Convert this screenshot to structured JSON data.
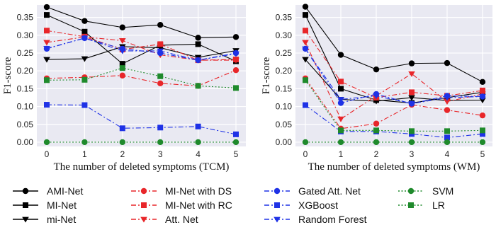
{
  "chart_data": [
    {
      "type": "line",
      "ylabel": "F1-score",
      "xlabel": "The number of deleted symptoms (TCM)",
      "x": [
        0,
        1,
        2,
        3,
        4,
        5
      ],
      "xticks": [
        "0",
        "1",
        "2",
        "3",
        "4",
        "5"
      ],
      "yticks": [
        "0.00",
        "0.05",
        "0.10",
        "0.15",
        "0.20",
        "0.25",
        "0.30",
        "0.35"
      ],
      "ylim": [
        -0.012,
        0.385
      ],
      "grid": true,
      "series": [
        {
          "name": "AMI-Net",
          "values": [
            0.379,
            0.34,
            0.322,
            0.329,
            0.293,
            0.295
          ]
        },
        {
          "name": "MI-Net",
          "values": [
            0.357,
            0.31,
            0.22,
            0.272,
            0.275,
            0.227
          ]
        },
        {
          "name": "mi-Net",
          "values": [
            0.232,
            0.234,
            0.268,
            0.265,
            0.238,
            0.257
          ]
        },
        {
          "name": "MI-Net with DS",
          "values": [
            0.179,
            0.182,
            0.187,
            0.165,
            0.158,
            0.202
          ]
        },
        {
          "name": "MI-Net with RC",
          "values": [
            0.313,
            0.296,
            0.26,
            0.275,
            0.23,
            0.232
          ]
        },
        {
          "name": "Att. Net",
          "values": [
            0.28,
            0.295,
            0.285,
            0.245,
            0.23,
            0.23
          ]
        },
        {
          "name": "Gated Att. Net",
          "values": [
            0.262,
            0.292,
            0.262,
            0.25,
            0.23,
            0.25
          ]
        },
        {
          "name": "XGBoost",
          "values": [
            0.105,
            0.104,
            0.039,
            0.041,
            0.044,
            0.022
          ]
        },
        {
          "name": "Random Forest",
          "values": [
            0.263,
            0.292,
            0.256,
            0.256,
            0.23,
            0.248
          ]
        },
        {
          "name": "SVM",
          "values": [
            0.0,
            0.0,
            0.0,
            0.0,
            0.0,
            0.0
          ]
        },
        {
          "name": "LR",
          "values": [
            0.174,
            0.175,
            0.208,
            0.185,
            0.158,
            0.152
          ]
        }
      ]
    },
    {
      "type": "line",
      "ylabel": "F1-score",
      "xlabel": "The number of deleted symptoms (WM)",
      "x": [
        0,
        1,
        2,
        3,
        4,
        5
      ],
      "xticks": [
        "0",
        "1",
        "2",
        "3",
        "4",
        "5"
      ],
      "yticks": [
        "0.00",
        "0.05",
        "0.10",
        "0.15",
        "0.20",
        "0.25",
        "0.30",
        "0.35"
      ],
      "ylim": [
        -0.012,
        0.385
      ],
      "grid": true,
      "series": [
        {
          "name": "AMI-Net",
          "values": [
            0.38,
            0.245,
            0.204,
            0.221,
            0.222,
            0.169
          ]
        },
        {
          "name": "MI-Net",
          "values": [
            0.357,
            0.15,
            0.118,
            0.11,
            0.125,
            0.14
          ]
        },
        {
          "name": "mi-Net",
          "values": [
            0.232,
            0.12,
            0.115,
            0.125,
            0.117,
            0.118
          ]
        },
        {
          "name": "MI-Net with DS",
          "values": [
            0.179,
            0.038,
            0.052,
            0.105,
            0.09,
            0.075
          ]
        },
        {
          "name": "MI-Net with RC",
          "values": [
            0.313,
            0.17,
            0.125,
            0.14,
            0.13,
            0.145
          ]
        },
        {
          "name": "Att. Net",
          "values": [
            0.28,
            0.065,
            0.13,
            0.192,
            0.114,
            0.135
          ]
        },
        {
          "name": "Gated Att. Net",
          "values": [
            0.262,
            0.11,
            0.135,
            0.108,
            0.13,
            0.128
          ]
        },
        {
          "name": "XGBoost",
          "values": [
            0.104,
            0.03,
            0.03,
            0.023,
            0.013,
            0.023
          ]
        },
        {
          "name": "Random Forest",
          "values": [
            0.262,
            0.12,
            0.13,
            0.108,
            0.125,
            0.128
          ]
        },
        {
          "name": "SVM",
          "values": [
            0.0,
            0.0,
            0.0,
            0.0,
            0.0,
            0.0
          ]
        },
        {
          "name": "LR",
          "values": [
            0.174,
            0.033,
            0.033,
            0.031,
            0.031,
            0.033
          ]
        }
      ]
    }
  ],
  "legend": {
    "columns": [
      [
        "AMI-Net",
        "MI-Net",
        "mi-Net"
      ],
      [
        "MI-Net with DS",
        "MI-Net with RC",
        "Att. Net"
      ],
      [
        "Gated Att. Net",
        "XGBoost",
        "Random Forest"
      ],
      [
        "SVM",
        "LR"
      ]
    ]
  },
  "styles": {
    "AMI-Net": {
      "color": "#000000",
      "dash": "solid",
      "marker": "circle"
    },
    "MI-Net": {
      "color": "#000000",
      "dash": "solid",
      "marker": "square"
    },
    "mi-Net": {
      "color": "#000000",
      "dash": "solid",
      "marker": "triangle-down"
    },
    "MI-Net with DS": {
      "color": "#e8262a",
      "dash": "dashdot",
      "marker": "circle"
    },
    "MI-Net with RC": {
      "color": "#e8262a",
      "dash": "dashdot",
      "marker": "square"
    },
    "Att. Net": {
      "color": "#e8262a",
      "dash": "dashdot",
      "marker": "triangle-down"
    },
    "Gated Att. Net": {
      "color": "#1f32e6",
      "dash": "dashdot",
      "marker": "circle"
    },
    "XGBoost": {
      "color": "#1f32e6",
      "dash": "dashdot",
      "marker": "square"
    },
    "Random Forest": {
      "color": "#1f32e6",
      "dash": "dashdot",
      "marker": "triangle-down"
    },
    "SVM": {
      "color": "#1f8a2c",
      "dash": "dotted",
      "marker": "circle"
    },
    "LR": {
      "color": "#1f8a2c",
      "dash": "dotted",
      "marker": "square"
    }
  },
  "colors": {
    "plot_background": "#e9e9f2",
    "grid": "#ffffff"
  }
}
